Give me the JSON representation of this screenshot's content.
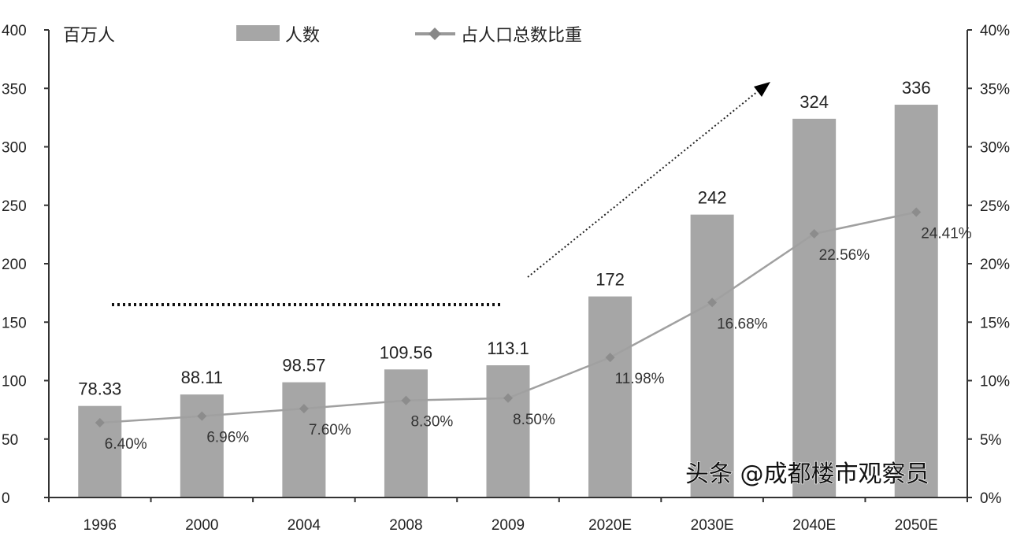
{
  "chart_data": {
    "type": "bar+line",
    "categories": [
      "1996",
      "2000",
      "2004",
      "2008",
      "2009",
      "2020E",
      "2030E",
      "2040E",
      "2050E"
    ],
    "series": [
      {
        "name": "人数",
        "type": "bar",
        "axis": "left",
        "values": [
          78.33,
          88.11,
          98.57,
          109.56,
          113.1,
          172,
          242,
          324,
          336
        ],
        "labels": [
          "78.33",
          "88.11",
          "98.57",
          "109.56",
          "113.1",
          "172",
          "242",
          "324",
          "336"
        ]
      },
      {
        "name": "占人口总数比重",
        "type": "line",
        "axis": "right",
        "values": [
          6.4,
          6.96,
          7.6,
          8.3,
          8.5,
          11.98,
          16.68,
          22.56,
          24.41
        ],
        "labels": [
          "6.40%",
          "6.96%",
          "7.60%",
          "8.30%",
          "8.50%",
          "11.98%",
          "16.68%",
          "22.56%",
          "24.41%"
        ]
      }
    ],
    "left_axis": {
      "unit_label": "百万人",
      "range": [
        0,
        400
      ],
      "ticks": [
        "0",
        "50",
        "100",
        "150",
        "200",
        "250",
        "300",
        "350",
        "400"
      ]
    },
    "right_axis": {
      "range": [
        0,
        40
      ],
      "ticks": [
        "0%",
        "5%",
        "10%",
        "15%",
        "20%",
        "25%",
        "30%",
        "35%",
        "40%"
      ]
    },
    "legend": {
      "placement": "top",
      "entries": [
        "人数",
        "占人口总数比重"
      ]
    },
    "colors": {
      "bar": "#a6a6a6",
      "line": "#a0a0a0",
      "marker": "#8c8c8c",
      "axis": "#333333"
    },
    "annotations": [
      "dotted horizontal line over 1996–2009",
      "dotted upward arrow from 2009 toward 2040E"
    ]
  },
  "watermark": "头条 @成都楼市观察员"
}
